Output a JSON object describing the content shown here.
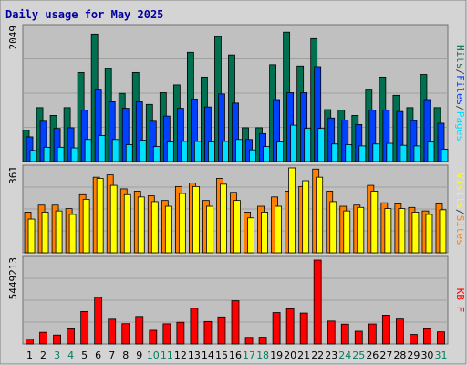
{
  "chart_data": {
    "type": "bar",
    "title": "Daily usage for May 2025",
    "categories": [
      "1",
      "2",
      "3",
      "4",
      "5",
      "6",
      "7",
      "8",
      "9",
      "10",
      "11",
      "12",
      "13",
      "14",
      "15",
      "16",
      "17",
      "18",
      "19",
      "20",
      "21",
      "22",
      "23",
      "24",
      "25",
      "26",
      "27",
      "28",
      "29",
      "30",
      "31"
    ],
    "weekend_days": [
      "3",
      "4",
      "10",
      "11",
      "17",
      "18",
      "24",
      "25",
      "31"
    ],
    "colors": {
      "title": "#0000a0",
      "hits": "#007050",
      "files": "#0040ff",
      "pages": "#00e0ff",
      "visits": "#ffff00",
      "sites": "#ff8000",
      "kbytes": "#ff0000",
      "weekday_label": "#000000",
      "weekend_label": "#00805c",
      "plot_bg": "#c0c0c0",
      "frame_bg": "#d4d4d4",
      "grid": "#a0a0a0"
    },
    "panels": [
      {
        "id": "hits-files-pages",
        "ymax_label": "2049",
        "ymax": 2049,
        "legend": [
          {
            "text": "Pages",
            "color": "#00e0ff"
          },
          {
            "text": "/",
            "color": "#404040"
          },
          {
            "text": "Files",
            "color": "#0040ff"
          },
          {
            "text": "/",
            "color": "#404040"
          },
          {
            "text": "Hits",
            "color": "#007050"
          }
        ],
        "series": [
          {
            "name": "Hits",
            "color": "#007050",
            "values": [
              480,
              830,
              710,
              830,
              1370,
              1960,
              1430,
              1050,
              1370,
              880,
              1060,
              1180,
              1680,
              1300,
              1920,
              1640,
              520,
              520,
              1490,
              1990,
              1470,
              1890,
              800,
              790,
              710,
              1100,
              1300,
              1020,
              830,
              1340,
              830
            ]
          },
          {
            "name": "Files",
            "color": "#0040ff",
            "values": [
              380,
              620,
              510,
              520,
              790,
              1100,
              920,
              820,
              920,
              620,
              700,
              820,
              950,
              840,
              1040,
              900,
              340,
              430,
              940,
              1060,
              1060,
              1460,
              670,
              640,
              570,
              790,
              790,
              770,
              630,
              940,
              590
            ]
          },
          {
            "name": "Pages",
            "color": "#00e0ff",
            "values": [
              170,
              220,
              220,
              210,
              340,
              400,
              340,
              260,
              330,
              230,
              300,
              310,
              310,
              300,
              310,
              340,
              180,
              230,
              300,
              560,
              510,
              510,
              270,
              260,
              240,
              270,
              280,
              250,
              240,
              300,
              190
            ]
          }
        ]
      },
      {
        "id": "visits-sites",
        "ymax_label": "361",
        "ymax": 361,
        "legend": [
          {
            "text": "Sites",
            "color": "#ff8000"
          },
          {
            "text": "/",
            "color": "#404040"
          },
          {
            "text": "Visits",
            "color": "#ffff00"
          }
        ],
        "series": [
          {
            "name": "Sites",
            "color": "#ff8000",
            "values": [
              175,
              205,
              205,
              190,
              250,
              325,
              335,
              275,
              265,
              245,
              225,
              285,
              300,
              225,
              320,
              260,
              175,
              200,
              240,
              265,
              285,
              360,
              265,
              200,
              205,
              290,
              215,
              210,
              195,
              180,
              210
            ]
          },
          {
            "name": "Visits",
            "color": "#ffff00",
            "values": [
              145,
              175,
              180,
              165,
              230,
              320,
              290,
              250,
              240,
              220,
              200,
              255,
              285,
              200,
              295,
              225,
              150,
              175,
              200,
              365,
              310,
              325,
              220,
              180,
              195,
              265,
              190,
              190,
              175,
              165,
              185
            ]
          }
        ]
      },
      {
        "id": "kbytes",
        "ymax_label": "5449213",
        "ymax": 5449213,
        "legend": [
          {
            "text": "KB F",
            "color": "#ff0000"
          }
        ],
        "series": [
          {
            "name": "KB F",
            "color": "#ff0000",
            "values": [
              330000,
              760000,
              580000,
              980000,
              2110000,
              3030000,
              1610000,
              1320000,
              1790000,
              890000,
              1310000,
              1410000,
              2320000,
              1460000,
              1760000,
              2810000,
              430000,
              440000,
              2040000,
              2290000,
              2010000,
              5449213,
              1490000,
              1290000,
              830000,
              1300000,
              1870000,
              1620000,
              620000,
              990000,
              790000
            ]
          }
        ]
      }
    ]
  }
}
